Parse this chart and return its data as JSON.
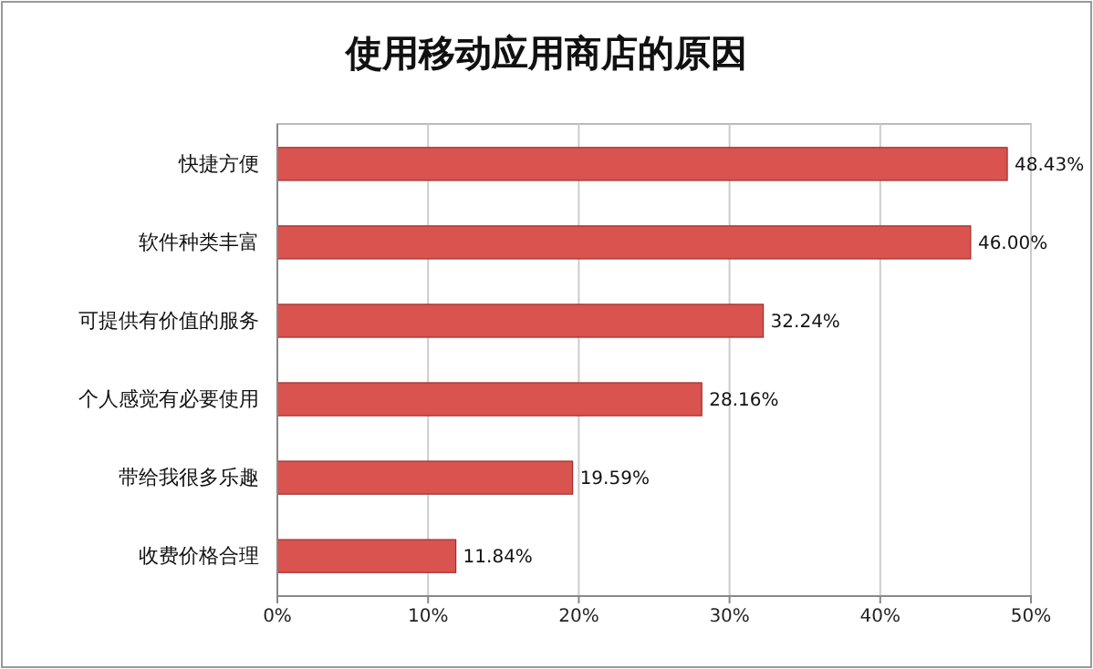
{
  "chart_data": {
    "type": "bar",
    "orientation": "horizontal",
    "title": "使用移动应用商店的原因",
    "categories": [
      "快捷方便",
      "软件种类丰富",
      "可提供有价值的服务",
      "个人感觉有必要使用",
      "带给我很多乐趣",
      "收费价格合理"
    ],
    "values": [
      48.43,
      46.0,
      32.24,
      28.16,
      19.59,
      11.84
    ],
    "value_labels": [
      "48.43%",
      "46.00%",
      "32.24%",
      "28.16%",
      "19.59%",
      "11.84%"
    ],
    "color": "#d9534f",
    "xlim": [
      0,
      50
    ],
    "xticks": [
      {
        "value": 0,
        "label": "0%"
      },
      {
        "value": 10,
        "label": "10%"
      },
      {
        "value": 20,
        "label": "20%"
      },
      {
        "value": 30,
        "label": "30%"
      },
      {
        "value": 40,
        "label": "40%"
      },
      {
        "value": 50,
        "label": "50%"
      }
    ],
    "grid": "x"
  }
}
